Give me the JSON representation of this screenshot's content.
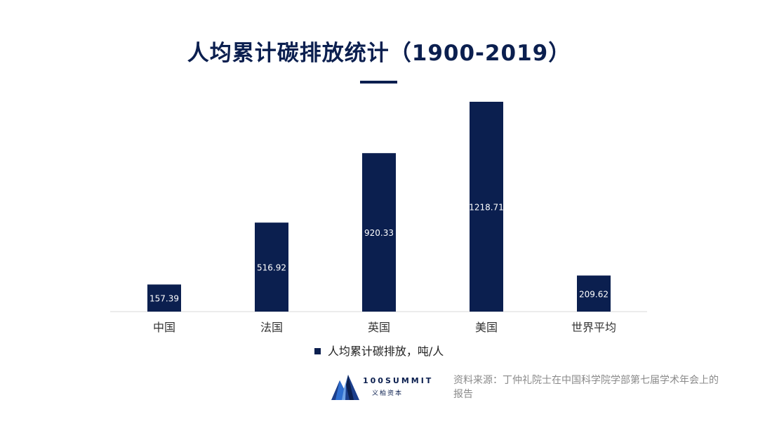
{
  "colors": {
    "bar": "#0b1f4f",
    "axis": "#d9d9d9",
    "title": "#0b1f4f"
  },
  "brand": {
    "name": "100SUMMIT",
    "subtitle": "义柏资本",
    "logo_icon": "mountain-peaks-icon"
  },
  "source": "资料来源：丁仲礼院士在中国科学院学部第七届学术年会上的报告",
  "chart_data": {
    "type": "bar",
    "title": "人均累计碳排放统计（1900-2019）",
    "categories": [
      "中国",
      "法国",
      "英国",
      "美国",
      "世界平均"
    ],
    "series": [
      {
        "name": "人均累计碳排放，吨/人",
        "values": [
          157.39,
          516.92,
          920.33,
          1218.71,
          209.62
        ]
      }
    ],
    "data_labels": [
      "157.39",
      "516.92",
      "920.33",
      "1218.71",
      "209.62"
    ],
    "ylim": [
      0,
      1218.71
    ],
    "grid": false,
    "legend": "bottom",
    "xlabel": "",
    "ylabel": ""
  }
}
